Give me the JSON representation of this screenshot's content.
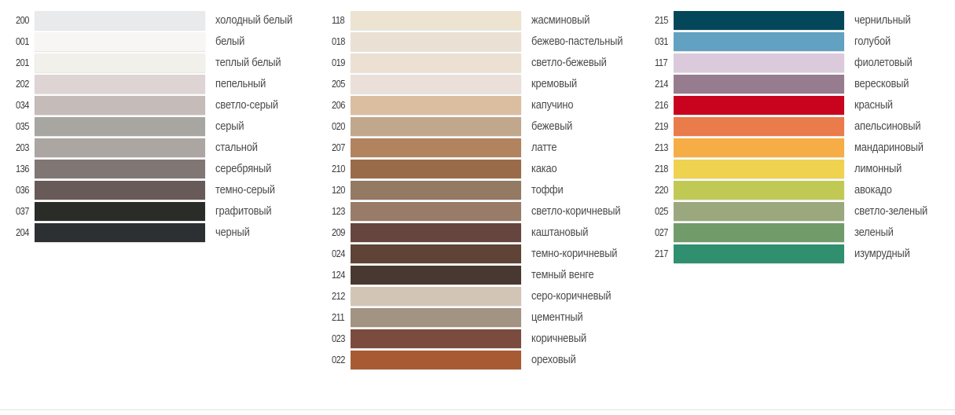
{
  "columns": [
    [
      {
        "code": "200",
        "name": "холодный белый",
        "color": "#e9eaec"
      },
      {
        "code": "001",
        "name": "белый",
        "color": "#f8f6f5"
      },
      {
        "code": "201",
        "name": "теплый белый",
        "color": "#f1f0ea"
      },
      {
        "code": "202",
        "name": "пепельный",
        "color": "#ded4d4"
      },
      {
        "code": "034",
        "name": "светло-серый",
        "color": "#c5bbb8"
      },
      {
        "code": "035",
        "name": "серый",
        "color": "#a8a6a0"
      },
      {
        "code": "203",
        "name": "стальной",
        "color": "#aba6a2"
      },
      {
        "code": "136",
        "name": "серебряный",
        "color": "#807674"
      },
      {
        "code": "036",
        "name": "темно-серый",
        "color": "#685a58"
      },
      {
        "code": "037",
        "name": "графитовый",
        "color": "#292c27"
      },
      {
        "code": "204",
        "name": "черный",
        "color": "#2d3033"
      }
    ],
    [
      {
        "code": "118",
        "name": "жасминовый",
        "color": "#ece4d1"
      },
      {
        "code": "018",
        "name": "бежево-пастельный",
        "color": "#ebe0d4"
      },
      {
        "code": "019",
        "name": "светло-бежевый",
        "color": "#ebe0d2"
      },
      {
        "code": "205",
        "name": "кремовый",
        "color": "#eae0d9"
      },
      {
        "code": "206",
        "name": "капучино",
        "color": "#dbbe9f"
      },
      {
        "code": "020",
        "name": "бежевый",
        "color": "#c1a78c"
      },
      {
        "code": "207",
        "name": "латте",
        "color": "#b1835e"
      },
      {
        "code": "210",
        "name": "какао",
        "color": "#9a6b48"
      },
      {
        "code": "120",
        "name": "тоффи",
        "color": "#947a62"
      },
      {
        "code": "123",
        "name": "светло-коричневый",
        "color": "#987c67"
      },
      {
        "code": "209",
        "name": "каштановый",
        "color": "#66453e"
      },
      {
        "code": "024",
        "name": "темно-коричневый",
        "color": "#5e4336"
      },
      {
        "code": "124",
        "name": "темный венге",
        "color": "#493831"
      },
      {
        "code": "212",
        "name": "серо-коричневый",
        "color": "#d3c5b6"
      },
      {
        "code": "211",
        "name": "цементный",
        "color": "#a29382"
      },
      {
        "code": "023",
        "name": "коричневый",
        "color": "#7b4b3e"
      },
      {
        "code": "022",
        "name": "ореховый",
        "color": "#a85a33"
      }
    ],
    [
      {
        "code": "215",
        "name": "чернильный",
        "color": "#04475b"
      },
      {
        "code": "031",
        "name": "голубой",
        "color": "#62a1c1"
      },
      {
        "code": "117",
        "name": "фиолетовый",
        "color": "#dbcadc"
      },
      {
        "code": "214",
        "name": "вересковый",
        "color": "#977c90"
      },
      {
        "code": "216",
        "name": "красный",
        "color": "#c9031e"
      },
      {
        "code": "219",
        "name": "апельсиновый",
        "color": "#ea7b4a"
      },
      {
        "code": "213",
        "name": "мандариновый",
        "color": "#f6ad45"
      },
      {
        "code": "218",
        "name": "лимонный",
        "color": "#efd24f"
      },
      {
        "code": "220",
        "name": "авокадо",
        "color": "#c1c955"
      },
      {
        "code": "025",
        "name": "светло-зеленый",
        "color": "#9ba87d"
      },
      {
        "code": "027",
        "name": "зеленый",
        "color": "#719c69"
      },
      {
        "code": "217",
        "name": "изумрудный",
        "color": "#2f8f6f"
      }
    ]
  ]
}
